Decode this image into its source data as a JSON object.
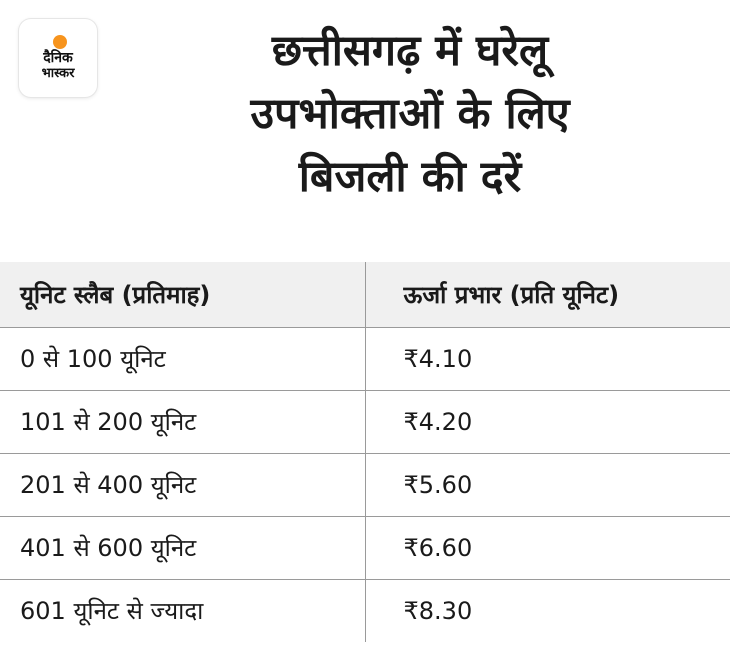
{
  "logo": {
    "line1": "दैनिक",
    "line2": "भास्कर"
  },
  "headline": {
    "line1": "छत्तीसगढ़ में घरेलू",
    "line2": "उपभोक्ताओं के लिए",
    "line3": "बिजली की दरें"
  },
  "table": {
    "headers": [
      "यूनिट स्लैब (प्रतिमाह)",
      "ऊर्जा प्रभार (प्रति यूनिट)"
    ],
    "rows": [
      [
        "0 से 100 यूनिट",
        "₹4.10"
      ],
      [
        "101 से 200 यूनिट",
        "₹4.20"
      ],
      [
        "201 से 400 यूनिट",
        "₹5.60"
      ],
      [
        "401 से 600 यूनिट",
        "₹6.60"
      ],
      [
        "601 यूनिट से ज्यादा",
        "₹8.30"
      ]
    ]
  },
  "colors": {
    "logo_sun": "#f7941d",
    "header_bg": "#f0f0f0",
    "border": "#9a9a9a",
    "text": "#1a1a1a"
  }
}
